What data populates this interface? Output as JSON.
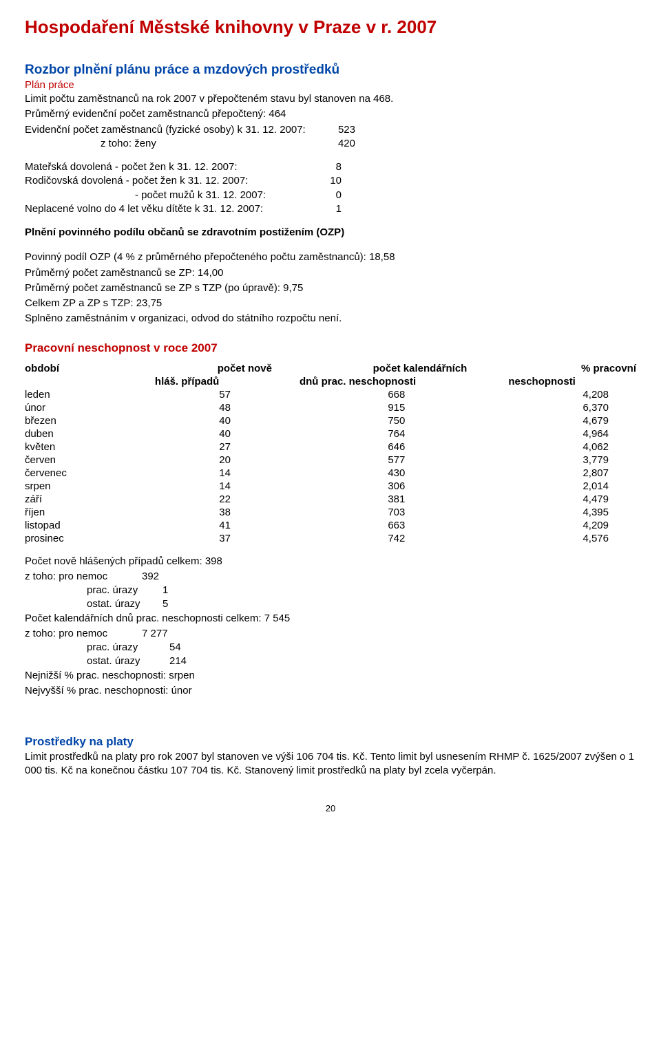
{
  "title": "Hospodaření Městské knihovny v Praze v r. 2007",
  "section1": {
    "heading": "Rozbor plnění plánu práce a mzdových prostředků",
    "subhead": "Plán práce",
    "intro": "Limit počtu zaměstnanců na rok 2007 v přepočteném stavu byl stanoven na 468.",
    "line2": "Průměrný evidenční počet zaměstnanců přepočtený: 464",
    "line3": "Evidenční počet zaměstnanců (fyzické osoby) k 31. 12. 2007:",
    "line3_val": "523",
    "line4": "z toho: ženy",
    "line4_val": "420",
    "maternal": {
      "l1": "Mateřská dovolená - počet žen k 31. 12. 2007:",
      "l1v": "8",
      "l2": "Rodičovská dovolená - počet žen k 31. 12. 2007:",
      "l2v": "10",
      "l3": "- počet mužů k 31. 12. 2007:",
      "l3v": "0",
      "l4": "Neplacené volno do 4 let věku dítěte k 31. 12. 2007:",
      "l4v": "1"
    },
    "ozp": {
      "head": "Plnění povinného podílu občanů se zdravotním postižením (OZP)",
      "l1": "Povinný podíl OZP (4 % z průměrného přepočteného počtu zaměstnanců): 18,58",
      "l2": "Průměrný počet zaměstnanců se ZP: 14,00",
      "l3": "Průměrný počet zaměstnanců se ZP s TZP (po úpravě): 9,75",
      "l4": "Celkem ZP a ZP s TZP: 23,75",
      "l5": "Splněno zaměstnáním v organizaci, odvod do státního rozpočtu není."
    }
  },
  "incapacity": {
    "heading": "Pracovní neschopnost v roce 2007",
    "headers": {
      "period": "období",
      "cases1": "počet nově",
      "cases2": "hláš. případů",
      "days1": "počet kalendářních",
      "days2": "dnů prac. neschopnosti",
      "pct1": "% pracovní",
      "pct2": "neschopnosti"
    },
    "rows": [
      {
        "m": "leden",
        "c": "57",
        "d": "668",
        "p": "4,208"
      },
      {
        "m": "únor",
        "c": "48",
        "d": "915",
        "p": "6,370"
      },
      {
        "m": "březen",
        "c": "40",
        "d": "750",
        "p": "4,679"
      },
      {
        "m": "duben",
        "c": "40",
        "d": "764",
        "p": "4,964"
      },
      {
        "m": "květen",
        "c": "27",
        "d": "646",
        "p": "4,062"
      },
      {
        "m": "červen",
        "c": "20",
        "d": "577",
        "p": "3,779"
      },
      {
        "m": "červenec",
        "c": "14",
        "d": "430",
        "p": "2,807"
      },
      {
        "m": "srpen",
        "c": "14",
        "d": "306",
        "p": "2,014"
      },
      {
        "m": "září",
        "c": "22",
        "d": "381",
        "p": "4,479"
      },
      {
        "m": "říjen",
        "c": "38",
        "d": "703",
        "p": "4,395"
      },
      {
        "m": "listopad",
        "c": "41",
        "d": "663",
        "p": "4,209"
      },
      {
        "m": "prosinec",
        "c": "37",
        "d": "742",
        "p": "4,576"
      }
    ],
    "totals": {
      "l1": "Počet nově hlášených případů celkem: 398",
      "l2": "z toho: pro nemoc",
      "l2v": "392",
      "l3": "prac. úrazy",
      "l3v": "1",
      "l4": "ostat. úrazy",
      "l4v": "5",
      "l5": "Počet kalendářních dnů prac. neschopnosti celkem: 7 545",
      "l6": "z toho: pro nemoc",
      "l6v": "7 277",
      "l7": "prac. úrazy",
      "l7v": "54",
      "l8": "ostat. úrazy",
      "l8v": "214",
      "l9": "Nejnižší % prac. neschopnosti: srpen",
      "l10": "Nejvyšší % prac. neschopnosti: únor"
    }
  },
  "salary": {
    "heading": "Prostředky na platy",
    "body": "Limit prostředků na platy pro rok 2007 byl stanoven ve výši 106 704 tis. Kč. Tento limit byl usnesením RHMP č. 1625/2007 zvýšen o 1 000 tis. Kč na konečnou  částku 107 704 tis. Kč. Stanovený limit prostředků na platy byl zcela vyčerpán."
  },
  "page_number": "20"
}
